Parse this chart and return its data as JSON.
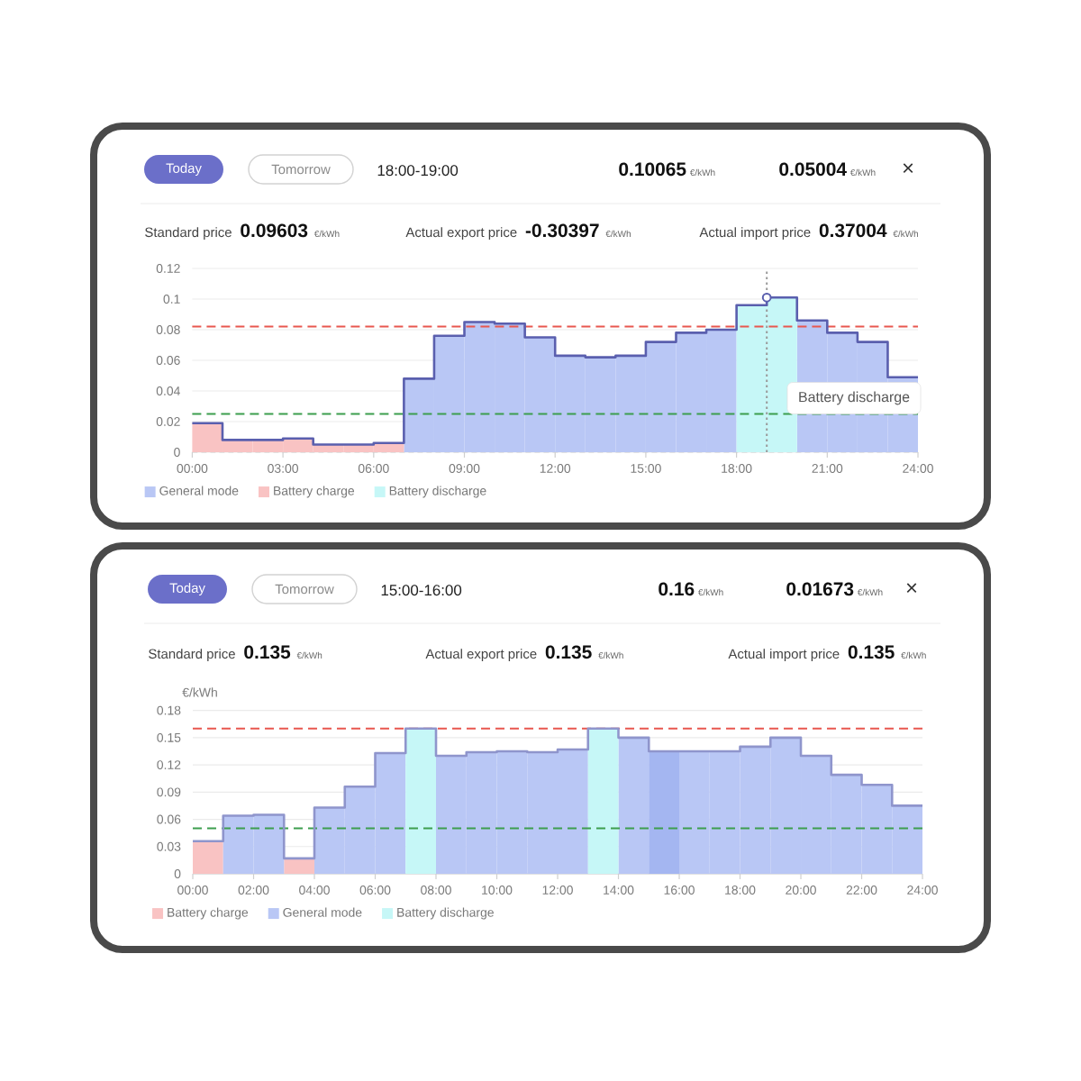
{
  "chart_data": [
    {
      "type": "bar",
      "x": [
        0.5,
        1.5,
        2.5,
        3.5,
        4.5,
        5.5,
        6.5,
        7.5,
        8.5,
        9.5,
        10.5,
        11.5,
        12.5,
        13.5,
        14.5,
        15.5,
        16.5,
        17.5,
        18.5,
        19.5,
        20.5,
        21.5,
        22.5,
        23.5
      ],
      "series": [
        {
          "name": "General mode",
          "color": "#b9c7f5",
          "values": [
            null,
            null,
            null,
            null,
            null,
            null,
            null,
            0.048,
            0.076,
            0.085,
            0.084,
            0.075,
            0.063,
            0.062,
            0.063,
            0.072,
            0.078,
            0.08,
            null,
            null,
            0.086,
            0.078,
            0.072,
            0.049
          ]
        },
        {
          "name": "Battery charge",
          "color": "#f9c3c3",
          "values": [
            0.019,
            0.008,
            0.008,
            0.009,
            0.005,
            0.005,
            0.006,
            null,
            null,
            null,
            null,
            null,
            null,
            null,
            null,
            null,
            null,
            null,
            null,
            null,
            null,
            null,
            null,
            null
          ]
        },
        {
          "name": "Battery discharge",
          "color": "#c6f7f7",
          "values": [
            null,
            null,
            null,
            null,
            null,
            null,
            null,
            null,
            null,
            null,
            null,
            null,
            null,
            null,
            null,
            null,
            null,
            null,
            0.096,
            0.101,
            null,
            null,
            null,
            null
          ]
        },
        {
          "type": "step",
          "color": "#5a5fae",
          "x": [
            0,
            1,
            2,
            3,
            4,
            5,
            6,
            7,
            8,
            9,
            10,
            11,
            12,
            13,
            14,
            15,
            16,
            17,
            18,
            19,
            20,
            21,
            22,
            23,
            24
          ],
          "values": [
            0.019,
            0.008,
            0.008,
            0.009,
            0.005,
            0.005,
            0.006,
            0.048,
            0.076,
            0.085,
            0.084,
            0.075,
            0.063,
            0.062,
            0.063,
            0.072,
            0.078,
            0.08,
            0.096,
            0.101,
            0.086,
            0.078,
            0.072,
            0.049,
            0.049
          ]
        },
        {
          "type": "scatter",
          "color": "#5a5fae",
          "marker": "circle",
          "x": [
            19
          ],
          "values": [
            0.101
          ]
        }
      ],
      "xlim": [
        0,
        24
      ],
      "xticks": [
        {
          "value": 0,
          "label": "00:00"
        },
        {
          "value": 3,
          "label": "03:00"
        },
        {
          "value": 6,
          "label": "06:00"
        },
        {
          "value": 9,
          "label": "09:00"
        },
        {
          "value": 12,
          "label": "12:00"
        },
        {
          "value": 15,
          "label": "15:00"
        },
        {
          "value": 18,
          "label": "18:00"
        },
        {
          "value": 21,
          "label": "21:00"
        },
        {
          "value": 24,
          "label": "24:00"
        }
      ],
      "ylim": [
        0,
        0.12
      ],
      "yticks": [
        0,
        0.02,
        0.04,
        0.06,
        0.08,
        0.1,
        0.12
      ],
      "grid": "y",
      "legend": "bottom",
      "ref_lines": [
        {
          "axis": "y",
          "value": 0.082,
          "color": "#e8574f",
          "line_style": "dashed"
        },
        {
          "axis": "y",
          "value": 0.025,
          "color": "#3d9e4e",
          "line_style": "dashed"
        },
        {
          "axis": "x",
          "value": 19,
          "color": "#9a9a9a",
          "line_style": "dotted"
        }
      ],
      "annotations": [
        "Today",
        "Tomorrow",
        "18:00-19:00",
        "0.10065",
        "€/kWh",
        "0.05004",
        "€/kWh",
        "×",
        "Standard price",
        "0.09603",
        "€/kWh",
        "Actual export price",
        "-0.30397",
        "€/kWh",
        "Actual import price",
        "0.37004",
        "€/kWh",
        "Battery discharge"
      ]
    },
    {
      "type": "bar",
      "x": [
        0.5,
        1.5,
        2.5,
        3.5,
        4.5,
        5.5,
        6.5,
        7.5,
        8.5,
        9.5,
        10.5,
        11.5,
        12.5,
        13.5,
        14.5,
        15.5,
        16.5,
        17.5,
        18.5,
        19.5,
        20.5,
        21.5,
        22.5,
        23.5
      ],
      "series": [
        {
          "name": "Battery charge",
          "color": "#f9c3c3",
          "values": [
            0.036,
            null,
            null,
            0.017,
            null,
            null,
            null,
            null,
            null,
            null,
            null,
            null,
            null,
            null,
            null,
            null,
            null,
            null,
            null,
            null,
            null,
            null,
            null,
            null
          ]
        },
        {
          "name": "General mode",
          "color": "#b9c7f5",
          "colors": [
            null,
            "#b9c7f5",
            "#b9c7f5",
            null,
            "#b9c7f5",
            "#b9c7f5",
            "#b9c7f5",
            null,
            "#b9c7f5",
            "#b9c7f5",
            "#b9c7f5",
            "#b9c7f5",
            "#b9c7f5",
            null,
            "#b9c7f5",
            "#a4b6f1",
            "#b9c7f5",
            "#b9c7f5",
            "#b9c7f5",
            "#b9c7f5",
            "#b9c7f5",
            "#b9c7f5",
            "#b9c7f5",
            "#b9c7f5"
          ],
          "values": [
            null,
            0.064,
            0.065,
            null,
            0.073,
            0.096,
            0.133,
            null,
            0.13,
            0.134,
            0.135,
            0.134,
            0.137,
            null,
            0.15,
            0.135,
            0.135,
            0.135,
            0.14,
            0.15,
            0.13,
            0.109,
            0.098,
            0.075
          ]
        },
        {
          "name": "Battery discharge",
          "color": "#c6f7f7",
          "values": [
            null,
            null,
            null,
            null,
            null,
            null,
            null,
            0.16,
            null,
            null,
            null,
            null,
            null,
            0.16,
            null,
            null,
            null,
            null,
            null,
            null,
            null,
            null,
            null,
            null
          ]
        },
        {
          "type": "step",
          "color": "#8f95cc",
          "x": [
            0,
            1,
            2,
            3,
            4,
            5,
            6,
            7,
            8,
            9,
            10,
            11,
            12,
            13,
            14,
            15,
            16,
            17,
            18,
            19,
            20,
            21,
            22,
            23,
            24
          ],
          "values": [
            0.036,
            0.064,
            0.065,
            0.017,
            0.073,
            0.096,
            0.133,
            0.16,
            0.13,
            0.134,
            0.135,
            0.134,
            0.137,
            0.16,
            0.15,
            0.135,
            0.135,
            0.135,
            0.14,
            0.15,
            0.13,
            0.109,
            0.098,
            0.075,
            0.075
          ]
        }
      ],
      "xlim": [
        0,
        24
      ],
      "xticks": [
        {
          "value": 0,
          "label": "00:00"
        },
        {
          "value": 2,
          "label": "02:00"
        },
        {
          "value": 4,
          "label": "04:00"
        },
        {
          "value": 6,
          "label": "06:00"
        },
        {
          "value": 8,
          "label": "08:00"
        },
        {
          "value": 10,
          "label": "10:00"
        },
        {
          "value": 12,
          "label": "12:00"
        },
        {
          "value": 14,
          "label": "14:00"
        },
        {
          "value": 16,
          "label": "16:00"
        },
        {
          "value": 18,
          "label": "18:00"
        },
        {
          "value": 20,
          "label": "20:00"
        },
        {
          "value": 22,
          "label": "22:00"
        },
        {
          "value": 24,
          "label": "24:00"
        }
      ],
      "ylim": [
        0,
        0.18
      ],
      "yticks": [
        0,
        0.03,
        0.06,
        0.09,
        0.12,
        0.15,
        0.18
      ],
      "ylabel": "€/kWh",
      "grid": "y",
      "legend": "bottom",
      "ref_lines": [
        {
          "axis": "y",
          "value": 0.16,
          "color": "#e8574f",
          "line_style": "dashed"
        },
        {
          "axis": "y",
          "value": 0.05,
          "color": "#3d9e4e",
          "line_style": "dashed"
        }
      ],
      "annotations": [
        "Today",
        "Tomorrow",
        "15:00-16:00",
        "0.16",
        "€/kWh",
        "0.01673",
        "€/kWh",
        "×",
        "Standard price",
        "0.135",
        "€/kWh",
        "Actual export price",
        "0.135",
        "€/kWh",
        "Actual import price",
        "0.135",
        "€/kWh"
      ]
    }
  ]
}
